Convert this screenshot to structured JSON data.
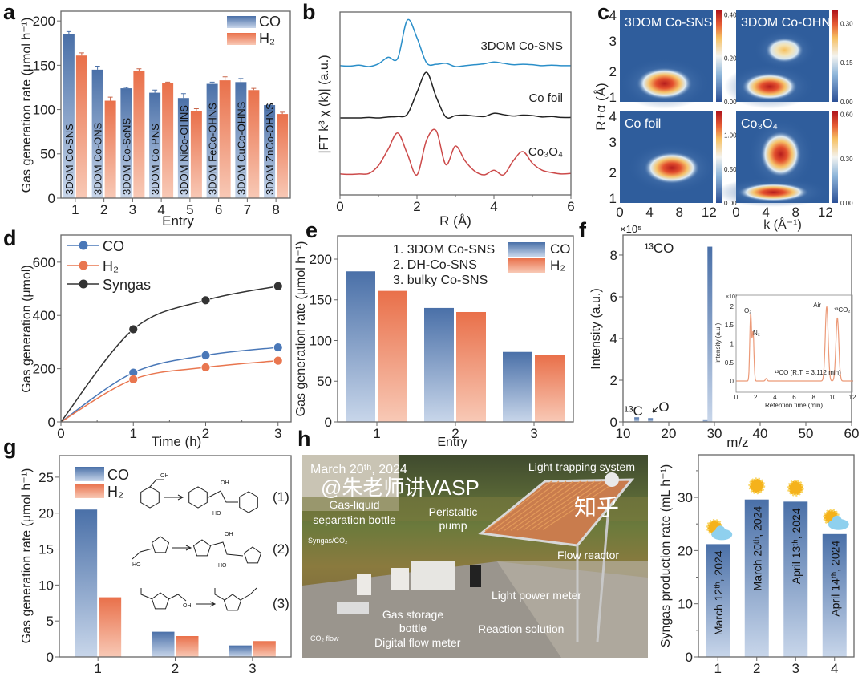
{
  "panel_labels": [
    "a",
    "b",
    "c",
    "d",
    "e",
    "f",
    "g",
    "h"
  ],
  "colors": {
    "co": "#4a70a8",
    "co_light": "#c8d6ea",
    "h2": "#e9704a",
    "h2_light": "#f8c9b6",
    "syngas": "#333333"
  },
  "chart_data": [
    {
      "panel": "a",
      "type": "bar",
      "categories": [
        "1",
        "2",
        "3",
        "4",
        "5",
        "6",
        "7",
        "8"
      ],
      "bar_labels": [
        "3DOM Co-SNS",
        "3DOM Co-ONS",
        "3DOM Co-SeNS",
        "3DOM Co-PNS",
        "3DOM NiCo-OHNS",
        "3DOM FeCo-OHNS",
        "3DOM CuCo-OHNS",
        "3DOM ZnCo-OHNS"
      ],
      "series": [
        {
          "name": "CO",
          "values": [
            185,
            145,
            124,
            119,
            113,
            129,
            131,
            105
          ],
          "errors": [
            3,
            4,
            1,
            3,
            5,
            2,
            4,
            0
          ]
        },
        {
          "name": "H₂",
          "values": [
            161,
            110,
            144,
            130,
            98,
            133,
            122,
            95
          ],
          "errors": [
            3,
            4,
            2,
            1,
            3,
            4,
            2,
            2
          ]
        }
      ],
      "xlabel": "Entry",
      "ylabel": "Gas generation rate (μmol h⁻¹)",
      "ylim": [
        0,
        211
      ],
      "yticks": [
        0,
        50,
        100,
        150,
        200
      ],
      "legend": "top-right"
    },
    {
      "panel": "b",
      "type": "line",
      "xlabel": "R (Å)",
      "ylabel": "|FT k³ χ (k)| (a.u.)",
      "xlim": [
        0,
        6
      ],
      "xticks": [
        0,
        2,
        4,
        6
      ],
      "x": [
        0,
        0.25,
        0.5,
        0.75,
        1,
        1.25,
        1.5,
        1.75,
        2,
        2.25,
        2.5,
        2.75,
        3,
        3.25,
        3.5,
        3.75,
        4,
        4.25,
        4.5,
        4.75,
        5,
        5.25,
        5.5,
        5.75,
        6
      ],
      "series": [
        {
          "name": "3DOM Co-SNS",
          "color": "#2b8fc9",
          "values": [
            0.02,
            0.01,
            0.03,
            0.0,
            0.06,
            0.2,
            0.18,
            1.0,
            0.62,
            0.08,
            0.05,
            0.07,
            0.0,
            0.02,
            0.04,
            0.06,
            0.1,
            0.07,
            0.04,
            0.05,
            0.04,
            0.02,
            0.03,
            0.02,
            0.02
          ]
        },
        {
          "name": "Co foil",
          "color": "#222222",
          "values": [
            0,
            0,
            0,
            0.01,
            0,
            0.02,
            0.03,
            0.08,
            0.55,
            0.98,
            0.45,
            0.02,
            0.05,
            0.06,
            0.04,
            0.03,
            0.1,
            0.07,
            0.04,
            0.06,
            0.05,
            0.02,
            0.03,
            0.01,
            0.01
          ]
        },
        {
          "name": "Co₃O₄",
          "color": "#cc4a4a",
          "values": [
            0.02,
            0.01,
            0.02,
            0.03,
            0.2,
            0.55,
            0.9,
            0.45,
            0.0,
            0.75,
            0.95,
            0.22,
            0.62,
            0.3,
            0.08,
            0.0,
            0.1,
            0.0,
            0.3,
            0.5,
            0.25,
            0.1,
            0.05,
            0.02,
            0.03
          ]
        }
      ]
    },
    {
      "panel": "c",
      "type": "heatmap",
      "xlabel": "k (Å⁻¹)",
      "ylabel": "R+α (Å)",
      "xlim": [
        0,
        12.5
      ],
      "ylim": [
        1,
        4
      ],
      "xticks": [
        0,
        4,
        8,
        12
      ],
      "yticks": [
        1,
        2,
        3,
        4
      ],
      "maps": [
        {
          "title": "3DOM Co-SNS",
          "colorbar": [
            "0.00",
            "0.20",
            "0.40"
          ],
          "max": 0.42,
          "peaks": [
            {
              "k": 6,
              "r": 1.6,
              "dk": 3.8,
              "dr": 0.38,
              "value": 0.42
            }
          ]
        },
        {
          "title": "3DOM Co-OHNS",
          "colorbar": [
            "0.00",
            "0.15",
            "0.30"
          ],
          "max": 0.35,
          "peaks": [
            {
              "k": 4.5,
              "r": 1.5,
              "dk": 3.8,
              "dr": 0.33,
              "value": 0.33
            },
            {
              "k": 6.5,
              "r": 2.7,
              "dk": 2.6,
              "dr": 0.3,
              "value": 0.18
            }
          ]
        },
        {
          "title": "Co foil",
          "colorbar": [
            "0.00",
            "0.50",
            "1.00"
          ],
          "max": 1.35,
          "peaks": [
            {
              "k": 7,
              "r": 2.15,
              "dk": 3.8,
              "dr": 0.38,
              "value": 1.3
            }
          ]
        },
        {
          "title": "Co₃O₄",
          "colorbar": [
            "0.00",
            "0.30",
            "0.60"
          ],
          "max": 0.62,
          "peaks": [
            {
              "k": 6,
              "r": 2.6,
              "dk": 2.8,
              "dr": 0.55,
              "value": 0.6
            },
            {
              "k": 5,
              "r": 1.35,
              "dk": 4.8,
              "dr": 0.22,
              "value": 0.5
            }
          ]
        }
      ]
    },
    {
      "panel": "d",
      "type": "line",
      "xlabel": "Time (h)",
      "ylabel": "Gas generation (μmol)",
      "x": [
        0,
        1,
        2,
        3
      ],
      "xlim": [
        0,
        3.18
      ],
      "ylim": [
        0,
        702
      ],
      "xticks": [
        0,
        1,
        2,
        3
      ],
      "yticks": [
        0,
        200,
        400,
        600
      ],
      "legend": "top-left",
      "series": [
        {
          "name": "CO",
          "color": "#4a78b8",
          "values": [
            0,
            185,
            250,
            280
          ]
        },
        {
          "name": "H₂",
          "color": "#e9764f",
          "values": [
            0,
            160,
            205,
            230
          ]
        },
        {
          "name": "Syngas",
          "color": "#333333",
          "values": [
            0,
            348,
            457,
            510
          ]
        }
      ]
    },
    {
      "panel": "e",
      "type": "bar",
      "categories": [
        "1",
        "2",
        "3"
      ],
      "entries": [
        "1.   3DOM Co-SNS",
        "2.   DH-Co-SNS",
        "3.   bulky Co-SNS"
      ],
      "series": [
        {
          "name": "CO",
          "values": [
            185,
            140,
            86
          ]
        },
        {
          "name": "H₂",
          "values": [
            161,
            135,
            82
          ]
        }
      ],
      "xlabel": "Entry",
      "ylabel": "Gas generation rate (μmol h⁻¹)",
      "ylim": [
        0,
        228.6
      ],
      "yticks": [
        0,
        50,
        100,
        150,
        200
      ],
      "legend": "top-right"
    },
    {
      "panel": "f",
      "type": "bar",
      "xlabel": "m/z",
      "ylabel": "Intensity (a.u.)",
      "scale_label": "×10⁵",
      "xlim": [
        10,
        60
      ],
      "ylim": [
        0,
        8.96
      ],
      "xticks": [
        10,
        20,
        30,
        40,
        50,
        60
      ],
      "yticks": [
        0,
        2,
        4,
        6,
        8
      ],
      "bars": [
        {
          "mz": 13,
          "value": 0.22,
          "label": "¹³C"
        },
        {
          "mz": 16,
          "value": 0.18,
          "label": "O"
        },
        {
          "mz": 28,
          "value": 0.12,
          "label": ""
        },
        {
          "mz": 29,
          "value": 8.4,
          "label": "¹³CO"
        }
      ],
      "inset": {
        "type": "line",
        "xlabel": "Retention time (min)",
        "ylabel": "Intensity (a.u.)",
        "scale_label": "×10⁷",
        "xlim": [
          0,
          12
        ],
        "ylim": [
          -0.3,
          2.3
        ],
        "xticks": [
          0,
          2,
          4,
          6,
          8,
          10,
          12
        ],
        "yticks": [
          0,
          0.5,
          1,
          1.5,
          2
        ],
        "peaks": [
          {
            "t": 1.5,
            "value": 1.8,
            "label": "O₂"
          },
          {
            "t": 1.75,
            "value": 1.3,
            "label": "N₂"
          },
          {
            "t": 3.112,
            "value": 0.07,
            "label": "¹³CO (R.T. = 3.112 min)"
          },
          {
            "t": 9.35,
            "value": 2.0,
            "label": "Air"
          },
          {
            "t": 10.45,
            "value": 1.7,
            "label": "¹³CO₂"
          }
        ]
      }
    },
    {
      "panel": "g",
      "type": "bar",
      "categories": [
        "1",
        "2",
        "3"
      ],
      "series": [
        {
          "name": "CO",
          "values": [
            20.5,
            3.5,
            1.6
          ]
        },
        {
          "name": "H₂",
          "values": [
            8.3,
            2.9,
            2.2
          ]
        }
      ],
      "ylabel": "Gas generation rate (μmol h⁻¹)",
      "ylim": [
        0,
        28
      ],
      "yticks": [
        0,
        5,
        10,
        15,
        20,
        25
      ],
      "legend": "top-left",
      "reactions": [
        "(1)",
        "(2)",
        "(3)"
      ],
      "chem_labels": {
        "oh": "OH",
        "ho": "HO",
        "o": "O"
      }
    },
    {
      "panel": "h",
      "type": "bar",
      "categories": [
        "1",
        "2",
        "3",
        "4"
      ],
      "bar_labels": [
        "March 12ᵗʰ, 2024",
        "March 20ᵗʰ, 2024",
        "April 13ᵗʰ, 2024",
        "April 14ᵗʰ, 2024"
      ],
      "weather": [
        "partly-cloudy",
        "sunny",
        "sunny",
        "partly-cloudy"
      ],
      "values": [
        21.2,
        29.6,
        29.2,
        23.1
      ],
      "ylabel": "Syngas production rate (mL h⁻¹)",
      "ylim": [
        0,
        38
      ],
      "yticks": [
        0,
        10,
        20,
        30
      ]
    }
  ],
  "photo": {
    "date": "March 20ᵗʰ, 2024",
    "labels": {
      "light_trapping": "Light trapping system",
      "gas_liquid_1": "Gas-liquid",
      "gas_liquid_2": "separation bottle",
      "pump_1": "Peristaltic",
      "pump_2": "pump",
      "syngas": "Syngas/CO₂",
      "flow_reactor": "Flow reactor",
      "light_meter": "Light power meter",
      "gas_storage_1": "Gas storage",
      "gas_storage_2": "bottle",
      "reaction_solution": "Reaction solution",
      "co2_flow": "CO₂ flow",
      "flow_meter": "Digital flow meter"
    }
  },
  "watermark": {
    "site": "知乎",
    "author": "@朱老师讲VASP"
  }
}
